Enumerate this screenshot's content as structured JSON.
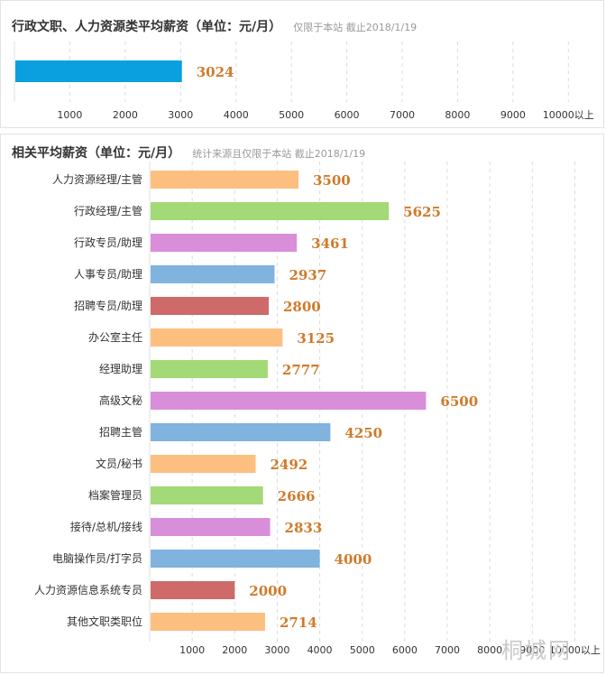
{
  "chart_data": [
    {
      "type": "bar",
      "orientation": "horizontal",
      "title": "行政文职、人力资源类平均薪资（单位：元/月）",
      "subtitle": "仅限于本站  截止2018/1/19",
      "categories": [
        ""
      ],
      "values": [
        3024
      ],
      "value_labels": [
        "3024"
      ],
      "colors": [
        "#0aa0e0"
      ],
      "xlim": [
        0,
        10500
      ],
      "ticks": [
        1000,
        2000,
        3000,
        4000,
        5000,
        6000,
        7000,
        8000,
        9000,
        10000
      ],
      "tick_labels": [
        "1000",
        "2000",
        "3000",
        "4000",
        "5000",
        "6000",
        "7000",
        "8000",
        "9000",
        "10000以上"
      ],
      "grid": true
    },
    {
      "type": "bar",
      "orientation": "horizontal",
      "title": "相关平均薪资（单位：元/月）",
      "subtitle": "统计来源且仅限于本站  截止2018/1/19",
      "categories": [
        "人力资源经理/主管",
        "行政经理/主管",
        "行政专员/助理",
        "人事专员/助理",
        "招聘专员/助理",
        "办公室主任",
        "经理助理",
        "高级文秘",
        "招聘主管",
        "文员/秘书",
        "档案管理员",
        "接待/总机/接线",
        "电脑操作员/打字员",
        "人力资源信息系统专员",
        "其他文职类职位"
      ],
      "values": [
        3500,
        5625,
        3461,
        2937,
        2800,
        3125,
        2777,
        6500,
        4250,
        2492,
        2666,
        2833,
        4000,
        2000,
        2714
      ],
      "value_labels": [
        "3500",
        "5625",
        "3461",
        "2937",
        "2800",
        "3125",
        "2777",
        "6500",
        "4250",
        "2492",
        "2666",
        "2833",
        "4000",
        "2000",
        "2714"
      ],
      "colors": [
        "#fdbf80",
        "#a3d977",
        "#d98ed9",
        "#80b3dd",
        "#cf6a6a",
        "#fdbf80",
        "#a3d977",
        "#d98ed9",
        "#80b3dd",
        "#fdbf80",
        "#a3d977",
        "#d98ed9",
        "#80b3dd",
        "#cf6a6a",
        "#fdbf80"
      ],
      "xlim": [
        0,
        10500
      ],
      "ticks": [
        1000,
        2000,
        3000,
        4000,
        5000,
        6000,
        7000,
        8000,
        9000,
        10000
      ],
      "tick_labels": [
        "1000",
        "2000",
        "3000",
        "4000",
        "5000",
        "6000",
        "7000",
        "8000",
        "9000",
        "10000以上"
      ],
      "grid": true
    }
  ],
  "watermark": "桐城网"
}
